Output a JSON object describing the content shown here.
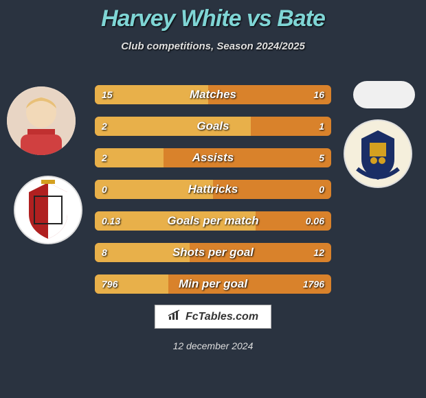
{
  "title": "Harvey White vs Bate",
  "subtitle": "Club competitions, Season 2024/2025",
  "colors": {
    "page_bg": "#2a3340",
    "title_color": "#7fd5d5",
    "bar_base": "#d9822b",
    "bar_fill": "#e8b04a",
    "text": "#ffffff"
  },
  "bars": [
    {
      "label": "Matches",
      "left": "15",
      "right": "16",
      "fill_pct": 48
    },
    {
      "label": "Goals",
      "left": "2",
      "right": "1",
      "fill_pct": 66
    },
    {
      "label": "Assists",
      "left": "2",
      "right": "5",
      "fill_pct": 29
    },
    {
      "label": "Hattricks",
      "left": "0",
      "right": "0",
      "fill_pct": 50
    },
    {
      "label": "Goals per match",
      "left": "0.13",
      "right": "0.06",
      "fill_pct": 68
    },
    {
      "label": "Shots per goal",
      "left": "8",
      "right": "12",
      "fill_pct": 40
    },
    {
      "label": "Min per goal",
      "left": "796",
      "right": "1796",
      "fill_pct": 31
    }
  ],
  "brand": "FcTables.com",
  "date": "12 december 2024"
}
